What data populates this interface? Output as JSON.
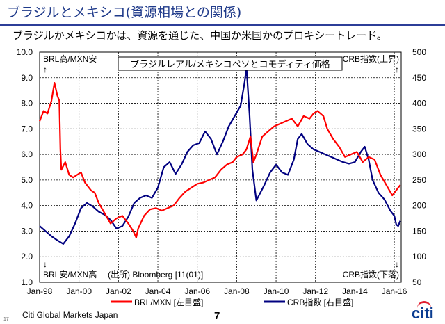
{
  "header": {
    "title": "ブラジルとメキシコ(資源相場との関係)",
    "subtitle": "ブラジルかメキシコかは、資源を通じた、中国か米国かのプロキシートレード。"
  },
  "footer": {
    "company": "Citi Global Markets Japan",
    "page": "7",
    "slide_number": "17",
    "logo": "citi"
  },
  "chart_data": {
    "type": "line",
    "title": "ブラジルレアル/メキシコペソとコモディティ価格",
    "source": "(出所) Bloomberg [11(01)]",
    "annotations": {
      "top_left": "BRL高/MXN安",
      "top_left_arrow": "↑",
      "bottom_left": "BRL安/MXN高",
      "bottom_left_arrow": "↓",
      "top_right": "CRB指数(上昇)",
      "top_right_arrow": "↑",
      "bottom_right": "CRB指数(下落)",
      "bottom_right_arrow": "↓"
    },
    "x_ticks": [
      "Jan-98",
      "Jan-00",
      "Jan-02",
      "Jan-04",
      "Jan-06",
      "Jan-08",
      "Jan-10",
      "Jan-12",
      "Jan-14",
      "Jan-16"
    ],
    "x_range": [
      1998.0,
      2016.35
    ],
    "y_left": {
      "ticks": [
        "1.0",
        "2.0",
        "3.0",
        "4.0",
        "5.0",
        "6.0",
        "7.0",
        "8.0",
        "9.0",
        "10.0"
      ],
      "range": [
        1.0,
        10.0
      ]
    },
    "y_right": {
      "ticks": [
        "50",
        "100",
        "150",
        "200",
        "250",
        "300",
        "350",
        "400",
        "450",
        "500"
      ],
      "range": [
        50,
        500
      ]
    },
    "legend": [
      {
        "label": "BRL/MXN [左目盛]",
        "color": "#ff0000",
        "axis": "left"
      },
      {
        "label": "CRB指数 [右目盛]",
        "color": "#000080",
        "axis": "right"
      }
    ],
    "series": [
      {
        "name": "BRL/MXN [左目盛]",
        "axis": "left",
        "color": "#ff0000",
        "x": [
          1998.0,
          1998.2,
          1998.4,
          1998.6,
          1998.75,
          1998.9,
          1999.0,
          1999.05,
          1999.1,
          1999.3,
          1999.5,
          1999.7,
          1999.9,
          2000.1,
          2000.3,
          2000.6,
          2000.8,
          2001.0,
          2001.3,
          2001.6,
          2001.9,
          2002.2,
          2002.5,
          2002.75,
          2002.9,
          2003.0,
          2003.3,
          2003.6,
          2003.9,
          2004.2,
          2004.5,
          2004.8,
          2005.1,
          2005.4,
          2005.7,
          2006.0,
          2006.3,
          2006.6,
          2006.9,
          2007.2,
          2007.5,
          2007.8,
          2008.0,
          2008.3,
          2008.5,
          2008.7,
          2008.85,
          2009.0,
          2009.3,
          2009.6,
          2009.9,
          2010.2,
          2010.5,
          2010.8,
          2011.1,
          2011.4,
          2011.7,
          2011.9,
          2012.1,
          2012.4,
          2012.6,
          2012.9,
          2013.2,
          2013.5,
          2013.8,
          2014.1,
          2014.4,
          2014.7,
          2015.0,
          2015.3,
          2015.6,
          2015.9,
          2016.1,
          2016.3
        ],
        "y": [
          7.3,
          7.7,
          7.6,
          8.1,
          8.8,
          8.3,
          8.1,
          6.2,
          5.4,
          5.7,
          5.2,
          5.1,
          5.2,
          5.3,
          4.9,
          4.6,
          4.5,
          4.1,
          3.7,
          3.3,
          3.5,
          3.6,
          3.3,
          3.0,
          2.75,
          3.1,
          3.6,
          3.85,
          3.9,
          3.8,
          3.9,
          4.0,
          4.3,
          4.55,
          4.7,
          4.85,
          4.9,
          5.0,
          5.1,
          5.4,
          5.6,
          5.7,
          5.9,
          6.0,
          6.2,
          6.7,
          5.7,
          6.0,
          6.7,
          6.9,
          7.1,
          7.2,
          7.3,
          7.4,
          7.1,
          7.5,
          7.4,
          7.6,
          7.7,
          7.5,
          7.0,
          6.6,
          6.3,
          5.9,
          6.0,
          6.1,
          5.7,
          5.9,
          5.8,
          5.2,
          4.8,
          4.4,
          4.6,
          4.8
        ]
      },
      {
        "name": "CRB指数 [右目盛]",
        "axis": "right",
        "color": "#000080",
        "x": [
          1998.0,
          1998.3,
          1998.6,
          1998.9,
          1999.2,
          1999.5,
          1999.8,
          2000.1,
          2000.4,
          2000.7,
          2001.0,
          2001.3,
          2001.6,
          2001.9,
          2002.2,
          2002.5,
          2002.8,
          2003.1,
          2003.4,
          2003.7,
          2004.0,
          2004.3,
          2004.6,
          2004.9,
          2005.2,
          2005.5,
          2005.8,
          2006.1,
          2006.4,
          2006.7,
          2007.0,
          2007.3,
          2007.6,
          2007.9,
          2008.2,
          2008.4,
          2008.5,
          2008.65,
          2008.8,
          2009.0,
          2009.2,
          2009.4,
          2009.7,
          2010.0,
          2010.3,
          2010.6,
          2010.9,
          2011.1,
          2011.3,
          2011.6,
          2011.9,
          2012.2,
          2012.5,
          2012.8,
          2013.1,
          2013.4,
          2013.7,
          2014.0,
          2014.3,
          2014.5,
          2014.7,
          2014.9,
          2015.2,
          2015.5,
          2015.8,
          2016.0,
          2016.1,
          2016.2,
          2016.3
        ],
        "y": [
          160,
          150,
          140,
          132,
          125,
          140,
          165,
          195,
          205,
          198,
          188,
          182,
          172,
          155,
          160,
          178,
          205,
          215,
          220,
          215,
          235,
          275,
          285,
          262,
          280,
          305,
          318,
          322,
          345,
          330,
          300,
          325,
          355,
          375,
          395,
          440,
          470,
          380,
          270,
          210,
          225,
          240,
          265,
          280,
          265,
          260,
          290,
          330,
          340,
          320,
          310,
          305,
          300,
          295,
          290,
          285,
          282,
          285,
          305,
          315,
          290,
          250,
          225,
          212,
          190,
          180,
          163,
          160,
          170
        ]
      }
    ]
  }
}
